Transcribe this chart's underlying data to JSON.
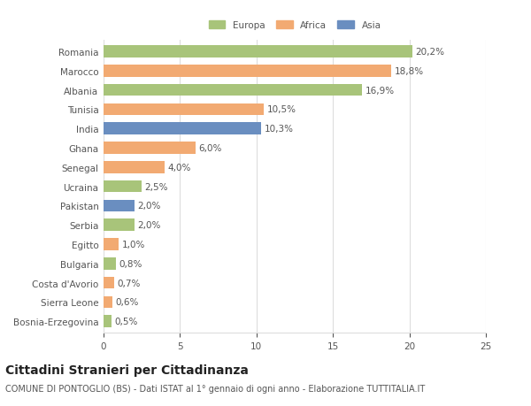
{
  "countries": [
    "Romania",
    "Marocco",
    "Albania",
    "Tunisia",
    "India",
    "Ghana",
    "Senegal",
    "Ucraina",
    "Pakistan",
    "Serbia",
    "Egitto",
    "Bulgaria",
    "Costa d'Avorio",
    "Sierra Leone",
    "Bosnia-Erzegovina"
  ],
  "values": [
    20.2,
    18.8,
    16.9,
    10.5,
    10.3,
    6.0,
    4.0,
    2.5,
    2.0,
    2.0,
    1.0,
    0.8,
    0.7,
    0.6,
    0.5
  ],
  "labels": [
    "20,2%",
    "18,8%",
    "16,9%",
    "10,5%",
    "10,3%",
    "6,0%",
    "4,0%",
    "2,5%",
    "2,0%",
    "2,0%",
    "1,0%",
    "0,8%",
    "0,7%",
    "0,6%",
    "0,5%"
  ],
  "continents": [
    "Europa",
    "Africa",
    "Europa",
    "Africa",
    "Asia",
    "Africa",
    "Africa",
    "Europa",
    "Asia",
    "Europa",
    "Africa",
    "Europa",
    "Africa",
    "Africa",
    "Europa"
  ],
  "colors": {
    "Europa": "#a8c47a",
    "Africa": "#f2aa72",
    "Asia": "#6a8ec0"
  },
  "title": "Cittadini Stranieri per Cittadinanza",
  "subtitle": "COMUNE DI PONTOGLIO (BS) - Dati ISTAT al 1° gennaio di ogni anno - Elaborazione TUTTITALIA.IT",
  "xlim": [
    0,
    25
  ],
  "xticks": [
    0,
    5,
    10,
    15,
    20,
    25
  ],
  "background_color": "#ffffff",
  "bar_height": 0.62,
  "grid_color": "#dddddd",
  "text_color": "#555555",
  "label_fontsize": 7.5,
  "tick_fontsize": 7.5,
  "title_fontsize": 10,
  "subtitle_fontsize": 7
}
